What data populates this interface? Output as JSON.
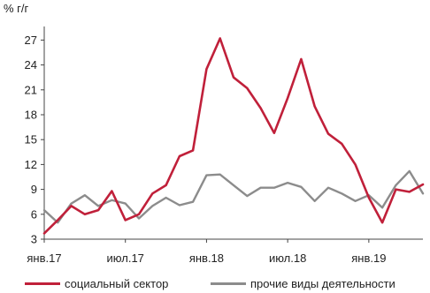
{
  "chart_data": {
    "type": "line",
    "unit_label": "% г/г",
    "y_ticks": [
      3,
      6,
      9,
      12,
      15,
      18,
      21,
      24,
      27
    ],
    "ylim": [
      3,
      28
    ],
    "x_ticks": [
      "янв.17",
      "июл.17",
      "янв.18",
      "июл.18",
      "янв.19"
    ],
    "series": [
      {
        "name": "социальный сектор",
        "color": "#c0203a",
        "values": [
          3.7,
          5.3,
          7.0,
          6.0,
          6.5,
          8.8,
          5.3,
          6.0,
          8.5,
          9.5,
          13.0,
          13.7,
          23.5,
          27.2,
          22.5,
          21.2,
          18.8,
          15.8,
          20.0,
          24.7,
          19.0,
          15.7,
          14.5,
          12.0,
          8.0,
          5.0,
          9.0,
          8.7,
          9.6
        ]
      },
      {
        "name": "прочие виды деятельности",
        "color": "#8c8c8c",
        "values": [
          6.5,
          5.0,
          7.3,
          8.3,
          7.0,
          7.7,
          7.3,
          5.5,
          7.0,
          8.0,
          7.1,
          7.5,
          10.7,
          10.8,
          9.5,
          8.2,
          9.2,
          9.2,
          9.8,
          9.3,
          7.6,
          9.2,
          8.5,
          7.6,
          8.3,
          6.8,
          9.5,
          11.2,
          8.5
        ]
      }
    ]
  }
}
